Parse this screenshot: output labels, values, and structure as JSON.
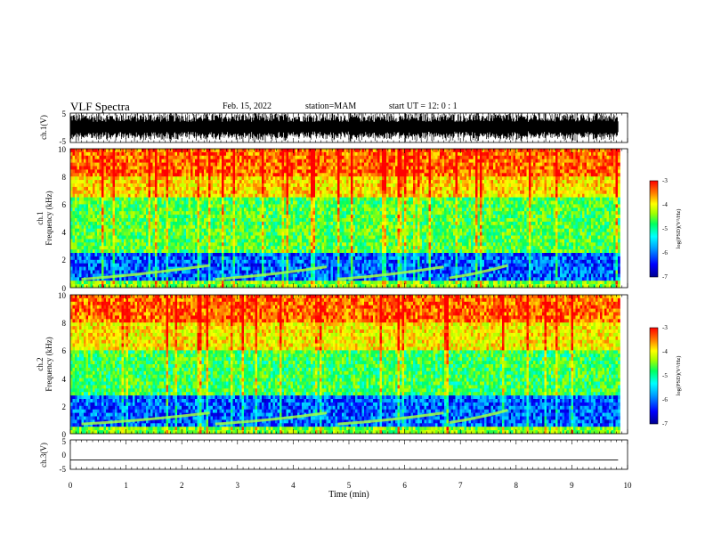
{
  "header": {
    "title": "VLF Spectra",
    "date": "Feb. 15, 2022",
    "station": "station=MAM",
    "start_ut": "start UT =  12: 0  : 1"
  },
  "colors": {
    "colormap": [
      "#000090",
      "#0000ff",
      "#00a0ff",
      "#00ffff",
      "#00ff60",
      "#a0ff00",
      "#ffff00",
      "#ff8000",
      "#ff0000"
    ]
  },
  "chart_data": [
    {
      "type": "line",
      "panel": "ch1-waveform",
      "ylabel": "ch.1(V)",
      "ylim": [
        -5,
        5
      ],
      "yticks": [
        "5",
        "-5"
      ],
      "xlim": [
        0,
        10
      ],
      "description_values": {
        "signal": "dense broadband noise saturating about -5 to 5 V"
      }
    },
    {
      "type": "heatmap",
      "panel": "ch1-spectrogram",
      "ylabel_top": "ch.1",
      "ylabel": "Frequency (kHz)",
      "ylim": [
        0,
        10
      ],
      "yticks": [
        "0",
        "2",
        "4",
        "6",
        "8",
        "10"
      ],
      "xlim": [
        0,
        9.83
      ],
      "colorbar": {
        "label": "log(PSD)(V²/Hz)",
        "range": [
          -7,
          -3
        ],
        "ticks": [
          "-3",
          "-4",
          "-5",
          "-6",
          "-7"
        ]
      },
      "bands_khz": [
        {
          "from": 0,
          "to": 0.6,
          "level": -4.6
        },
        {
          "from": 0.6,
          "to": 2.6,
          "level": -6.2
        },
        {
          "from": 2.6,
          "to": 6.5,
          "level": -4.8
        },
        {
          "from": 6.5,
          "to": 8.0,
          "level": -3.9
        },
        {
          "from": 8.0,
          "to": 10,
          "level": -3.4
        }
      ],
      "rising_tones": [
        {
          "t_start": 0.2,
          "t_end": 2.5,
          "f_start_khz": 0.6,
          "f_end_khz": 1.6
        },
        {
          "t_start": 2.6,
          "t_end": 4.6,
          "f_start_khz": 0.6,
          "f_end_khz": 1.5
        },
        {
          "t_start": 4.8,
          "t_end": 6.7,
          "f_start_khz": 0.6,
          "f_end_khz": 1.5
        },
        {
          "t_start": 6.8,
          "t_end": 7.85,
          "f_start_khz": 0.7,
          "f_end_khz": 1.6
        }
      ]
    },
    {
      "type": "heatmap",
      "panel": "ch2-spectrogram",
      "ylabel_top": "ch.2",
      "ylabel": "Frequency (kHz)",
      "ylim": [
        0,
        10
      ],
      "yticks": [
        "0",
        "2",
        "4",
        "6",
        "8",
        "10"
      ],
      "xlim": [
        0,
        9.83
      ],
      "colorbar": {
        "label": "log(PSD)(V²/Hz)",
        "range": [
          -7,
          -3
        ],
        "ticks": [
          "-3",
          "-4",
          "-5",
          "-6",
          "-7"
        ]
      },
      "bands_khz": [
        {
          "from": 0,
          "to": 0.6,
          "level": -4.6
        },
        {
          "from": 0.6,
          "to": 2.7,
          "level": -6.2
        },
        {
          "from": 2.7,
          "to": 6.0,
          "level": -4.9
        },
        {
          "from": 6.0,
          "to": 8.0,
          "level": -4.0
        },
        {
          "from": 8.0,
          "to": 10,
          "level": -3.4
        }
      ],
      "rising_tones": [
        {
          "t_start": 0.2,
          "t_end": 2.5,
          "f_start_khz": 0.7,
          "f_end_khz": 1.5
        },
        {
          "t_start": 2.6,
          "t_end": 4.6,
          "f_start_khz": 0.7,
          "f_end_khz": 1.5
        },
        {
          "t_start": 4.8,
          "t_end": 6.7,
          "f_start_khz": 0.7,
          "f_end_khz": 1.5
        },
        {
          "t_start": 6.8,
          "t_end": 7.85,
          "f_start_khz": 0.8,
          "f_end_khz": 1.7
        }
      ]
    },
    {
      "type": "line",
      "panel": "ch3-waveform",
      "ylabel": "ch.3(V)",
      "ylim": [
        -5,
        5
      ],
      "yticks": [
        "5",
        "0",
        "-5"
      ],
      "xlim": [
        0,
        10
      ],
      "x": [
        0,
        9.83
      ],
      "values": [
        -1.8,
        -1.8
      ]
    }
  ],
  "xaxis": {
    "label": "Time (min)",
    "ticks": [
      "0",
      "1",
      "2",
      "3",
      "4",
      "5",
      "6",
      "7",
      "8",
      "9",
      "10"
    ]
  }
}
